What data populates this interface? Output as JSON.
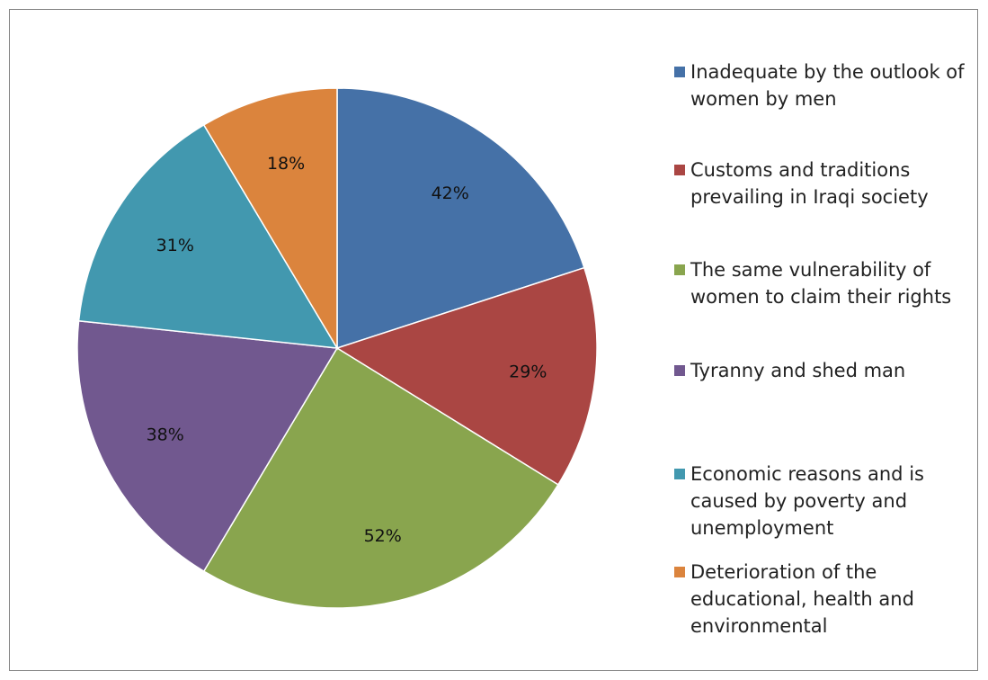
{
  "chart_data": {
    "type": "pie",
    "title": "",
    "series": [
      {
        "values": [
          42,
          29,
          52,
          38,
          31,
          18
        ],
        "data_labels": [
          "42%",
          "29%",
          "52%",
          "38%",
          "31%",
          "18%"
        ]
      }
    ],
    "categories": [
      "Inadequate by the outlook of women by men",
      "Customs and traditions prevailing in Iraqi society",
      "The same vulnerability of women to claim their rights",
      "Tyranny and shed man",
      "Economic reasons and is caused by poverty and unemployment",
      "Deterioration of the educational, health and environmental"
    ],
    "colors": [
      "#4571A7",
      "#AA4643",
      "#89A54E",
      "#71588F",
      "#4298AF",
      "#DB843D"
    ],
    "legend_position": "right",
    "start_angle": "12 o'clock, clockwise"
  }
}
